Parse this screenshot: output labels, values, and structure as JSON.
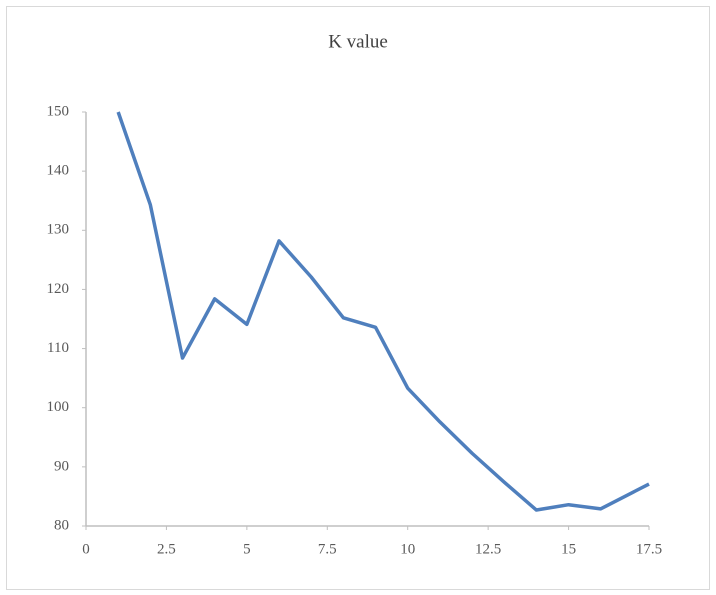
{
  "chart_data": {
    "type": "line",
    "title": "K value",
    "x": [
      1,
      2,
      3,
      4,
      5,
      6,
      7,
      8,
      9,
      10,
      11,
      12,
      13,
      14,
      15,
      16,
      17,
      17.5
    ],
    "series": [
      {
        "color": "#4f7fbd",
        "values": [
          150,
          134.3,
          108.4,
          118.4,
          114.1,
          128.2,
          122.1,
          115.2,
          113.6,
          103.3,
          97.6,
          92.3,
          87.4,
          82.7,
          83.6,
          82.9,
          85.7,
          87.1
        ]
      }
    ],
    "xlim": [
      0,
      17.5
    ],
    "xticks": [
      0,
      2.5,
      5,
      7.5,
      10,
      12.5,
      15,
      17.5
    ],
    "ylim": [
      80,
      150
    ],
    "yticks": [
      80,
      90,
      100,
      110,
      120,
      130,
      140,
      150
    ]
  }
}
